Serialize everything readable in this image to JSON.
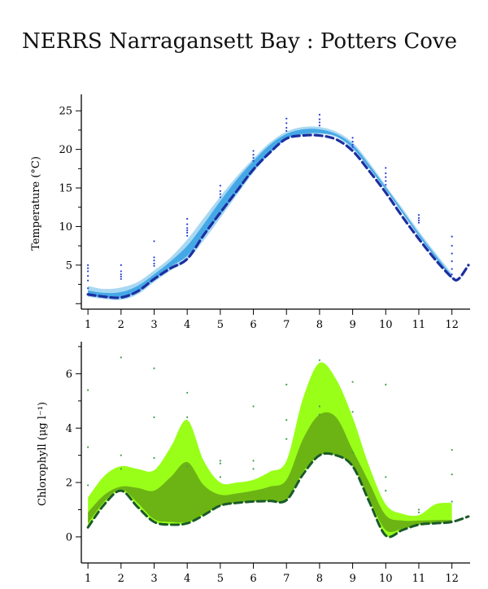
{
  "title": "NERRS Narragansett Bay : Potters Cove",
  "colors": {
    "temp_outer": "#a9d8f2",
    "temp_inner": "#45a8e6",
    "temp_line": "#1c2fa0",
    "temp_points": "#2a3fd0",
    "chl_outer": "#99ff19",
    "chl_inner": "#6cb414",
    "chl_line": "#1a5a2a",
    "chl_points": "#3aa050"
  },
  "chart_data": [
    {
      "type": "area",
      "name": "temperature",
      "ylabel": "Temperature (°C)",
      "x_ticks": [
        1,
        2,
        3,
        4,
        5,
        6,
        7,
        8,
        9,
        10,
        11,
        12
      ],
      "y_ticks": [
        5,
        10,
        15,
        20,
        25
      ],
      "xlim": [
        0.8,
        12.55
      ],
      "ylim": [
        -0.5,
        26.5
      ],
      "series": [
        {
          "role": "outer_band",
          "x": [
            1,
            1.5,
            2,
            2.5,
            3,
            3.5,
            4,
            4.5,
            5,
            5.5,
            6,
            6.5,
            7,
            7.5,
            8,
            8.5,
            9,
            9.5,
            10,
            10.5,
            11,
            11.5,
            12
          ],
          "lower": [
            0.9,
            0.6,
            0.5,
            1.2,
            2.8,
            4.3,
            5.6,
            8.2,
            11.1,
            14.1,
            17.0,
            19.4,
            21.3,
            21.9,
            22.0,
            21.6,
            20.0,
            17.5,
            14.7,
            11.7,
            8.7,
            5.9,
            3.2
          ],
          "upper": [
            2.3,
            1.9,
            2.1,
            2.8,
            4.3,
            6.0,
            8.3,
            11.1,
            13.9,
            16.5,
            18.8,
            20.9,
            22.3,
            22.9,
            22.9,
            22.3,
            20.9,
            18.3,
            15.3,
            12.4,
            9.4,
            6.6,
            3.9
          ]
        },
        {
          "role": "inner_band",
          "x": [
            1,
            1.5,
            2,
            2.5,
            3,
            3.5,
            4,
            4.5,
            5,
            5.5,
            6,
            6.5,
            7,
            7.5,
            8,
            8.5,
            9,
            9.5,
            10,
            10.5,
            11,
            11.5,
            12
          ],
          "lower": [
            1.1,
            0.8,
            0.8,
            1.5,
            3.1,
            4.8,
            6.2,
            8.8,
            11.5,
            14.4,
            17.2,
            19.6,
            21.4,
            22.0,
            22.1,
            21.7,
            20.2,
            17.6,
            14.8,
            11.8,
            8.8,
            6.0,
            3.3
          ],
          "upper": [
            1.7,
            1.4,
            1.5,
            2.3,
            3.8,
            5.5,
            7.5,
            10.3,
            13.3,
            16.1,
            18.5,
            20.6,
            22.0,
            22.6,
            22.6,
            22.0,
            20.6,
            18.0,
            15.1,
            12.1,
            9.1,
            6.3,
            3.6
          ]
        },
        {
          "role": "line",
          "x": [
            1,
            1.5,
            2,
            2.5,
            3,
            3.5,
            4,
            4.5,
            5,
            5.5,
            6,
            6.5,
            7,
            7.5,
            8,
            8.5,
            9,
            9.5,
            10,
            10.5,
            11,
            11.5,
            12,
            12.2,
            12.5
          ],
          "values": [
            1.2,
            0.9,
            0.8,
            1.6,
            3.2,
            4.6,
            5.8,
            8.9,
            11.8,
            14.6,
            17.4,
            19.6,
            21.4,
            21.8,
            21.8,
            21.3,
            19.8,
            17.2,
            14.4,
            11.3,
            8.4,
            5.7,
            3.4,
            3.2,
            5.0
          ]
        },
        {
          "role": "points",
          "x": [
            1,
            1,
            1,
            1,
            1,
            1,
            2,
            2,
            2,
            2,
            2,
            3,
            3,
            3,
            3,
            3,
            4,
            4,
            4,
            4,
            4,
            4,
            5,
            5,
            5,
            5,
            6,
            6,
            6,
            6,
            7,
            7,
            7,
            7,
            8,
            8,
            8,
            8,
            9,
            9,
            9,
            9,
            10,
            10,
            10,
            10,
            10,
            11,
            11,
            11,
            11,
            12,
            12,
            12,
            12,
            12,
            12
          ],
          "values": [
            5.0,
            4.6,
            4.2,
            3.6,
            3.0,
            2.0,
            5.0,
            4.2,
            3.8,
            3.5,
            3.2,
            8.1,
            6.0,
            5.6,
            5.2,
            4.9,
            11.0,
            10.3,
            9.8,
            9.5,
            9.2,
            8.8,
            15.3,
            14.6,
            14.2,
            13.8,
            19.8,
            19.3,
            18.9,
            18.5,
            24.0,
            23.4,
            22.8,
            22.4,
            24.5,
            23.9,
            23.5,
            23.1,
            21.5,
            21.0,
            20.6,
            20.3,
            17.6,
            16.9,
            16.4,
            15.9,
            15.4,
            11.5,
            11.1,
            10.8,
            10.5,
            8.7,
            7.5,
            6.5,
            5.5,
            4.5,
            3.8
          ]
        }
      ]
    },
    {
      "type": "area",
      "name": "chlorophyll",
      "ylabel": "Chlorophyll (μg l⁻¹)",
      "x_ticks": [
        1,
        2,
        3,
        4,
        5,
        6,
        7,
        8,
        9,
        10,
        11,
        12
      ],
      "y_ticks": [
        0,
        2,
        4,
        6
      ],
      "xlim": [
        0.8,
        12.55
      ],
      "ylim": [
        -0.9,
        7.0
      ],
      "series": [
        {
          "role": "outer_band",
          "x": [
            1,
            1.5,
            2,
            2.5,
            3,
            3.5,
            4,
            4.5,
            5,
            5.5,
            6,
            6.5,
            7,
            7.5,
            8,
            8.5,
            9,
            9.5,
            10,
            10.5,
            11,
            11.5,
            12
          ],
          "lower": [
            0.35,
            1.2,
            1.7,
            1.1,
            0.55,
            0.45,
            0.5,
            0.8,
            1.15,
            1.25,
            1.3,
            1.32,
            1.35,
            2.3,
            3.0,
            3.0,
            2.6,
            1.3,
            0.05,
            0.25,
            0.45,
            0.5,
            0.6
          ],
          "upper": [
            1.45,
            2.25,
            2.6,
            2.5,
            2.45,
            3.3,
            4.3,
            2.8,
            2.0,
            2.0,
            2.1,
            2.4,
            2.8,
            5.1,
            6.4,
            5.8,
            4.4,
            2.6,
            1.2,
            0.85,
            0.8,
            1.2,
            1.25
          ]
        },
        {
          "role": "inner_band",
          "x": [
            1,
            1.5,
            2,
            2.5,
            3,
            3.5,
            4,
            4.5,
            5,
            5.5,
            6,
            6.5,
            7,
            7.5,
            8,
            8.5,
            9,
            9.5,
            10,
            10.5,
            11,
            11.5,
            12
          ],
          "lower": [
            0.5,
            1.3,
            1.75,
            1.25,
            0.65,
            0.55,
            0.55,
            0.85,
            1.15,
            1.25,
            1.3,
            1.32,
            1.35,
            2.4,
            3.0,
            3.0,
            2.6,
            1.4,
            0.25,
            0.3,
            0.45,
            0.5,
            0.55
          ],
          "upper": [
            0.9,
            1.55,
            1.85,
            1.8,
            1.7,
            2.2,
            2.75,
            1.9,
            1.55,
            1.6,
            1.7,
            1.85,
            2.1,
            3.6,
            4.5,
            4.4,
            3.2,
            2.0,
            0.8,
            0.6,
            0.6,
            0.62,
            0.62
          ]
        },
        {
          "role": "line",
          "x": [
            1,
            1.5,
            2,
            2.5,
            3,
            3.5,
            4,
            4.5,
            5,
            5.5,
            6,
            6.5,
            7,
            7.5,
            8,
            8.5,
            9,
            9.5,
            10,
            10.5,
            11,
            11.5,
            12,
            12.5
          ],
          "values": [
            0.35,
            1.2,
            1.7,
            1.1,
            0.55,
            0.45,
            0.5,
            0.8,
            1.15,
            1.25,
            1.3,
            1.32,
            1.35,
            2.3,
            3.0,
            3.0,
            2.6,
            1.3,
            0.05,
            0.25,
            0.45,
            0.5,
            0.55,
            0.75
          ]
        },
        {
          "role": "points",
          "x": [
            1,
            1,
            1,
            2,
            2,
            2,
            3,
            3,
            3,
            4,
            4,
            4,
            5,
            5,
            5,
            6,
            6,
            6,
            7,
            7,
            7,
            8,
            8,
            8,
            9,
            9,
            9,
            10,
            10,
            10,
            11,
            11,
            12,
            12,
            12
          ],
          "values": [
            5.4,
            3.3,
            1.9,
            6.6,
            3.0,
            2.5,
            6.2,
            4.4,
            2.9,
            5.3,
            4.4,
            2.6,
            2.8,
            2.7,
            2.2,
            4.8,
            2.8,
            2.5,
            5.6,
            4.3,
            3.6,
            6.5,
            4.8,
            4.5,
            5.7,
            4.6,
            3.1,
            5.6,
            2.2,
            1.7,
            1.0,
            0.9,
            3.2,
            2.3,
            1.3
          ]
        }
      ]
    }
  ]
}
